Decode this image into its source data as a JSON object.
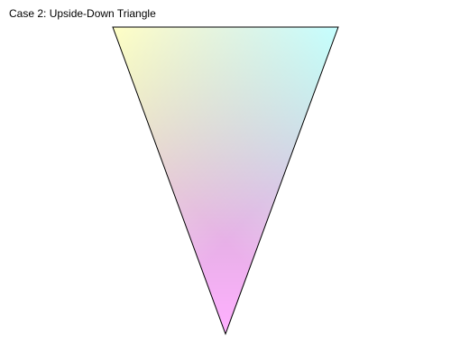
{
  "title": "Case 2: Upside-Down Triangle",
  "triangle": {
    "vertex_colors": {
      "top_left": "#ffff00",
      "top_right": "#00ffff",
      "bottom": "#ff00ff"
    },
    "outline_color": "#000000"
  }
}
